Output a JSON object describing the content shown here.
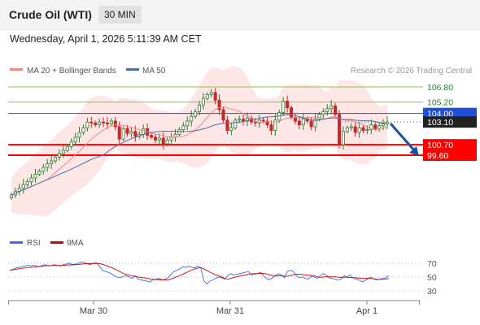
{
  "header": {
    "title": "Crude Oil (WTI)",
    "timeframe": "30 MIN"
  },
  "datetime": "Wednesday, April 1, 2026 5:11:39 AM CET",
  "legend": {
    "ma20": "MA 20 + Bollinger Bands",
    "ma50": "MA 50",
    "credit": "Research © 2026 Trading Central"
  },
  "colors": {
    "up": "#2e7d32",
    "down": "#c62828",
    "ma20": "#f28b82",
    "ma50": "#4a6fa5",
    "band": "#fde0e0",
    "support": "#ff0000",
    "pivot": "#1e4fd6",
    "resistance": "#8cc63f",
    "last": "#222222",
    "rsi": "#4169e1",
    "rsi_ma": "#d00000"
  },
  "chart_data": [
    {
      "type": "candlestick",
      "x_labels": [
        "Mar 30",
        "Mar 31",
        "Apr 1"
      ],
      "ylim": [
        97.0,
        108.0
      ],
      "levels": [
        {
          "label": "106.80",
          "value": 106.8,
          "kind": "resistance"
        },
        {
          "label": "105.20",
          "value": 105.2,
          "kind": "resistance"
        },
        {
          "label": "104.00",
          "value": 104.0,
          "kind": "pivot"
        },
        {
          "label": "103.10",
          "value": 103.1,
          "kind": "last"
        },
        {
          "label": "100.70",
          "value": 100.7,
          "kind": "support"
        },
        {
          "label": "99.60",
          "value": 99.6,
          "kind": "support"
        }
      ],
      "close_path": [
        95.4,
        95.8,
        96.1,
        96.5,
        96.8,
        97.2,
        97.6,
        97.9,
        98.3,
        98.7,
        99.0,
        99.4,
        99.8,
        100.1,
        100.5,
        101.0,
        101.5,
        102.0,
        102.5,
        103.1,
        103.0,
        102.8,
        103.1,
        103.0,
        102.9,
        103.2,
        102.6,
        101.3,
        102.4,
        101.9,
        102.1,
        101.6,
        101.8,
        102.4,
        101.7,
        101.5,
        101.2,
        101.4,
        100.8,
        101.2,
        101.5,
        101.8,
        102.3,
        102.7,
        103.2,
        103.7,
        104.2,
        104.9,
        105.6,
        106.0,
        106.2,
        105.4,
        104.4,
        103.3,
        102.2,
        102.5,
        103.3,
        103.4,
        103.2,
        103.5,
        103.1,
        103.0,
        103.3,
        103.2,
        102.8,
        102.2,
        103.3,
        104.1,
        105.3,
        104.6,
        103.6,
        103.2,
        102.8,
        103.4,
        103.2,
        102.6,
        103.4,
        103.9,
        104.2,
        104.5,
        104.8,
        103.9,
        100.7,
        102.1,
        102.5,
        102.6,
        102.0,
        102.5,
        102.2,
        102.3,
        102.8,
        102.4,
        102.7,
        102.9,
        103.1
      ],
      "rsi": {
        "levels": [
          70,
          50,
          30
        ],
        "values": [
          60,
          61,
          63,
          64,
          65,
          66,
          67,
          66,
          67,
          66,
          65,
          67,
          68,
          66,
          67,
          68,
          67,
          66,
          68,
          69,
          70,
          68,
          69,
          70,
          72,
          71,
          69,
          68,
          70,
          71,
          66,
          60,
          58,
          57,
          55,
          52,
          50,
          49,
          51,
          52,
          50,
          48,
          52,
          47,
          46,
          45,
          44,
          43,
          46,
          47,
          48,
          46,
          47,
          49,
          54,
          58,
          60,
          62,
          65,
          64,
          66,
          64,
          63,
          66,
          63,
          45,
          40,
          44,
          46,
          48,
          50,
          49,
          47,
          52,
          55,
          53,
          54,
          55,
          56,
          57,
          58,
          53,
          54,
          55,
          57,
          52,
          48,
          46,
          49,
          52,
          55,
          53,
          49,
          58,
          60,
          58,
          52,
          49,
          50,
          48,
          47,
          51,
          50,
          48,
          52,
          55,
          53,
          49,
          48,
          47,
          46,
          47,
          52,
          50,
          53,
          49,
          47,
          46,
          43,
          45,
          48,
          50,
          47,
          46,
          47,
          48,
          49,
          52
        ]
      }
    }
  ]
}
